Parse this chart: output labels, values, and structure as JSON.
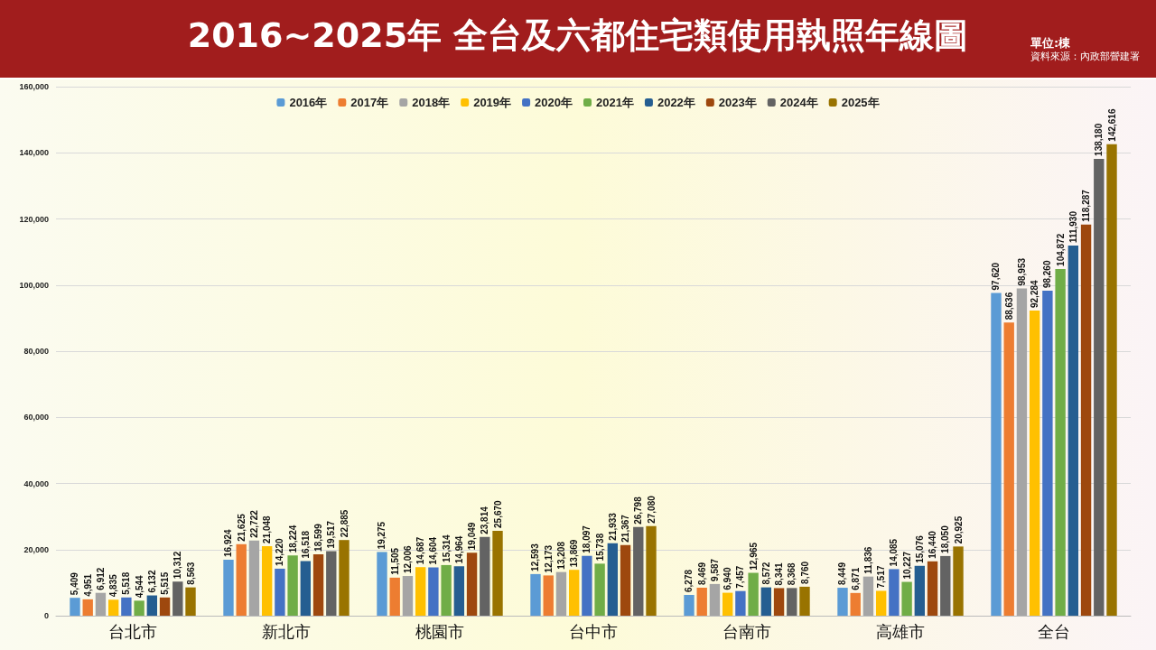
{
  "chart_data": {
    "type": "bar",
    "title": "2016~2025年  全台及六都住宅類使用執照年線圖",
    "annotations": [
      "單位:棟",
      "資料來源：內政部營建署"
    ],
    "categories": [
      "台北市",
      "新北市",
      "桃園市",
      "台中市",
      "台南市",
      "高雄市",
      "全台"
    ],
    "ylim": [
      0,
      160000
    ],
    "yticks": [
      0,
      {
        "value": 20000,
        "label": "20,000"
      },
      {
        "value": 40000,
        "label": "40,000"
      },
      {
        "value": 60000,
        "label": "60,000"
      },
      {
        "value": 80000,
        "label": "80,000"
      },
      {
        "value": 100000,
        "label": "100,000"
      },
      {
        "value": 120000,
        "label": "120,000"
      },
      {
        "value": 140000,
        "label": "140,000"
      },
      {
        "value": 160000,
        "label": "160,000"
      }
    ],
    "grid": "y",
    "legend": "top",
    "series": [
      {
        "name": "2016年",
        "color": "#5b9bd5",
        "values": [
          5409,
          16924,
          19275,
          12593,
          6278,
          8449,
          97620
        ],
        "value_labels": [
          "5,409",
          "16,924",
          "19,275",
          "12,593",
          "6,278",
          "8,449",
          "97,620"
        ]
      },
      {
        "name": "2017年",
        "color": "#ed7d31",
        "values": [
          4951,
          21625,
          11505,
          12173,
          8469,
          6871,
          88636
        ],
        "value_labels": [
          "4,951",
          "21,625",
          "11,505",
          "12,173",
          "8,469",
          "6,871",
          "88,636"
        ]
      },
      {
        "name": "2018年",
        "color": "#a5a5a5",
        "values": [
          6912,
          22722,
          12006,
          13208,
          9587,
          11836,
          98953
        ],
        "value_labels": [
          "6,912",
          "22,722",
          "12,006",
          "13,208",
          "9,587",
          "11,836",
          "98,953"
        ]
      },
      {
        "name": "2019年",
        "color": "#ffc000",
        "values": [
          4835,
          21048,
          14687,
          13869,
          6940,
          7517,
          92284
        ],
        "value_labels": [
          "4,835",
          "21,048",
          "14,687",
          "13,869",
          "6,940",
          "7,517",
          "92,284"
        ]
      },
      {
        "name": "2020年",
        "color": "#4472c4",
        "values": [
          5518,
          14220,
          14604,
          18097,
          7457,
          14085,
          98260
        ],
        "value_labels": [
          "5,518",
          "14,220",
          "14,604",
          "18,097",
          "7,457",
          "14,085",
          "98,260"
        ]
      },
      {
        "name": "2021年",
        "color": "#70ad47",
        "values": [
          4544,
          18224,
          15314,
          15738,
          12965,
          10227,
          104872
        ],
        "value_labels": [
          "4,544",
          "18,224",
          "15,314",
          "15,738",
          "12,965",
          "10,227",
          "104,872"
        ]
      },
      {
        "name": "2022年",
        "color": "#255e91",
        "values": [
          6132,
          16518,
          14964,
          21933,
          8572,
          15076,
          111930
        ],
        "value_labels": [
          "6,132",
          "16,518",
          "14,964",
          "21,933",
          "8,572",
          "15,076",
          "111,930"
        ]
      },
      {
        "name": "2023年",
        "color": "#9e480e",
        "values": [
          5515,
          18599,
          19049,
          21367,
          8341,
          16440,
          118287
        ],
        "value_labels": [
          "5,515",
          "18,599",
          "19,049",
          "21,367",
          "8,341",
          "16,440",
          "118,287"
        ]
      },
      {
        "name": "2024年",
        "color": "#636363",
        "values": [
          10312,
          19517,
          23814,
          26798,
          8368,
          18050,
          138180
        ],
        "value_labels": [
          "10,312",
          "19,517",
          "23,814",
          "26,798",
          "8,368",
          "18,050",
          "138,180"
        ]
      },
      {
        "name": "2025年",
        "color": "#997300",
        "values": [
          8563,
          22885,
          25670,
          27080,
          8760,
          20925,
          142616
        ],
        "value_labels": [
          "8,563",
          "22,885",
          "25,670",
          "27,080",
          "8,760",
          "20,925",
          "142,616"
        ]
      }
    ]
  }
}
